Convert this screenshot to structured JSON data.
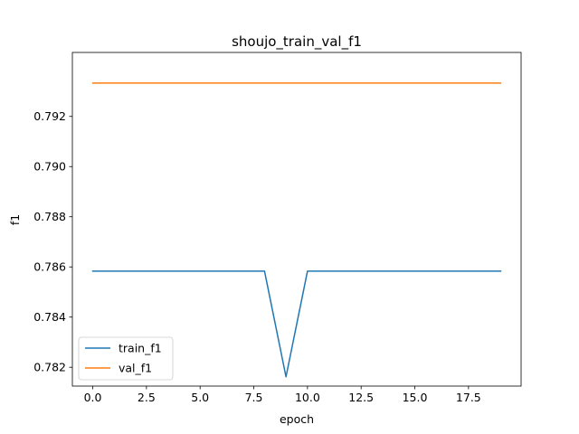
{
  "chart_data": {
    "type": "line",
    "title": "shoujo_train_val_f1",
    "xlabel": "epoch",
    "ylabel": "f1",
    "xlim": [
      -0.95,
      19.95
    ],
    "ylim": [
      0.78125,
      0.79455
    ],
    "x_ticks": [
      "0.0",
      "2.5",
      "5.0",
      "7.5",
      "10.0",
      "12.5",
      "15.0",
      "17.5"
    ],
    "y_ticks": [
      "0.782",
      "0.784",
      "0.786",
      "0.788",
      "0.790",
      "0.792"
    ],
    "grid": false,
    "legend_position": "lower-left",
    "x": [
      0,
      1,
      2,
      3,
      4,
      5,
      6,
      7,
      8,
      9,
      10,
      11,
      12,
      13,
      14,
      15,
      16,
      17,
      18,
      19
    ],
    "series": [
      {
        "name": "train_f1",
        "color": "#1f77b4",
        "values": [
          0.78583,
          0.78583,
          0.78583,
          0.78583,
          0.78583,
          0.78583,
          0.78583,
          0.78583,
          0.78583,
          0.78162,
          0.78583,
          0.78583,
          0.78583,
          0.78583,
          0.78583,
          0.78583,
          0.78583,
          0.78583,
          0.78583,
          0.78583
        ]
      },
      {
        "name": "val_f1",
        "color": "#ff7f0e",
        "values": [
          0.79333,
          0.79333,
          0.79333,
          0.79333,
          0.79333,
          0.79333,
          0.79333,
          0.79333,
          0.79333,
          0.79333,
          0.79333,
          0.79333,
          0.79333,
          0.79333,
          0.79333,
          0.79333,
          0.79333,
          0.79333,
          0.79333,
          0.79333
        ]
      }
    ]
  }
}
